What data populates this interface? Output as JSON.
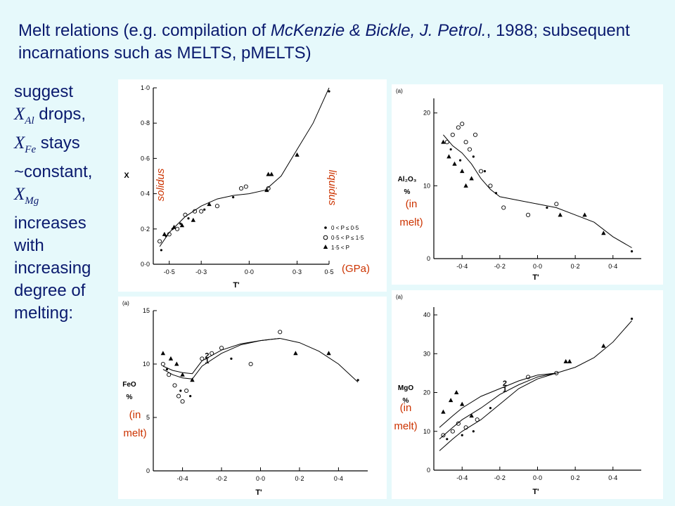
{
  "slide": {
    "title_a": "Melt relations (e.g. compilation of ",
    "title_ital": "McKenzie & Bickle, J. Petrol.",
    "title_b": ", 1988; subsequent incarnations such as MELTS, pMELTS)",
    "side": {
      "l1": "suggest",
      "al_sym": "X",
      "al_sub": "Al",
      "al_txt": " drops,",
      "fe_sym": "X",
      "fe_sub": "Fe",
      "fe_txt": " stays",
      "l4": "~constant,",
      "mg_sym": "X",
      "mg_sub": "Mg",
      "l6": "increases",
      "l7": "with",
      "l8": "increasing",
      "l9": "degree of",
      "l10": "melting:"
    }
  },
  "colors": {
    "text": "#0a1a6e",
    "annotation": "#cc3300",
    "background": "#e6f9fb"
  },
  "chart_data": [
    {
      "type": "scatter",
      "xlabel": "T'",
      "ylabel": "X",
      "xlim": [
        -0.6,
        0.5
      ],
      "ylim": [
        0,
        1.0
      ],
      "xticks": [
        "-0·5",
        "-0·3",
        "0·0",
        "0·3",
        "0·5"
      ],
      "xtick_values": [
        -0.5,
        -0.3,
        0.0,
        0.3,
        0.5
      ],
      "yticks": [
        "0·0",
        "0·2",
        "0·4",
        "0·6",
        "0·8",
        "1·0"
      ],
      "ytick_values": [
        0.0,
        0.2,
        0.4,
        0.6,
        0.8,
        1.0
      ],
      "annotations": {
        "solidus": "solidus",
        "liquidus": "liquidus",
        "units": "(GPa)"
      },
      "legend": [
        {
          "symbol": "dot",
          "label": "0 < P ≤ 0·5"
        },
        {
          "symbol": "circle",
          "label": "0·5 < P ≤ 1·5"
        },
        {
          "symbol": "triangle",
          "label": "1·5 < P"
        }
      ],
      "curve": [
        [
          -0.56,
          0.1
        ],
        [
          -0.5,
          0.18
        ],
        [
          -0.4,
          0.27
        ],
        [
          -0.3,
          0.33
        ],
        [
          -0.2,
          0.37
        ],
        [
          -0.1,
          0.39
        ],
        [
          0.0,
          0.4
        ],
        [
          0.1,
          0.42
        ],
        [
          0.2,
          0.5
        ],
        [
          0.3,
          0.65
        ],
        [
          0.4,
          0.8
        ],
        [
          0.5,
          1.0
        ]
      ],
      "series": [
        {
          "name": "0 < P ≤ 0·5",
          "marker": "dot",
          "points": [
            [
              -0.55,
              0.08
            ],
            [
              -0.52,
              0.16
            ],
            [
              -0.48,
              0.2
            ],
            [
              -0.43,
              0.23
            ],
            [
              -0.38,
              0.26
            ],
            [
              -0.28,
              0.31
            ],
            [
              -0.1,
              0.38
            ],
            [
              0.5,
              0.98
            ]
          ]
        },
        {
          "name": "0·5 < P ≤ 1·5",
          "marker": "circle",
          "points": [
            [
              -0.56,
              0.13
            ],
            [
              -0.5,
              0.17
            ],
            [
              -0.45,
              0.2
            ],
            [
              -0.4,
              0.28
            ],
            [
              -0.34,
              0.3
            ],
            [
              -0.3,
              0.3
            ],
            [
              -0.2,
              0.33
            ],
            [
              -0.05,
              0.43
            ],
            [
              -0.02,
              0.44
            ],
            [
              0.12,
              0.43
            ]
          ]
        },
        {
          "name": "1·5 < P",
          "marker": "triangle",
          "points": [
            [
              -0.53,
              0.17
            ],
            [
              -0.47,
              0.21
            ],
            [
              -0.42,
              0.22
            ],
            [
              -0.35,
              0.25
            ],
            [
              -0.25,
              0.34
            ],
            [
              0.12,
              0.51
            ],
            [
              0.14,
              0.51
            ],
            [
              0.3,
              0.62
            ],
            [
              0.11,
              0.42
            ]
          ]
        }
      ]
    },
    {
      "type": "scatter",
      "panel_label": "(a)",
      "xlabel": "T'",
      "ylabel": "Al₂O₃ %",
      "xlim": [
        -0.55,
        0.55
      ],
      "ylim": [
        0,
        22
      ],
      "xticks": [
        "-0·4",
        "-0·2",
        "0·0",
        "0·2",
        "0·4"
      ],
      "xtick_values": [
        -0.4,
        -0.2,
        0.0,
        0.2,
        0.4
      ],
      "yticks": [
        "0",
        "10",
        "20"
      ],
      "ytick_values": [
        0,
        10,
        20
      ],
      "annotations": {
        "units": "(in melt)"
      },
      "curve": [
        [
          -0.5,
          17
        ],
        [
          -0.45,
          15.5
        ],
        [
          -0.4,
          14.5
        ],
        [
          -0.35,
          13
        ],
        [
          -0.3,
          11
        ],
        [
          -0.25,
          9.5
        ],
        [
          -0.2,
          8.5
        ],
        [
          -0.1,
          8
        ],
        [
          0,
          7.5
        ],
        [
          0.1,
          7
        ],
        [
          0.2,
          6
        ],
        [
          0.3,
          5
        ],
        [
          0.4,
          3
        ],
        [
          0.5,
          1.5
        ]
      ],
      "series": [
        {
          "name": "",
          "marker": "circle",
          "points": [
            [
              -0.48,
              16
            ],
            [
              -0.45,
              17
            ],
            [
              -0.42,
              18
            ],
            [
              -0.4,
              18.5
            ],
            [
              -0.38,
              16
            ],
            [
              -0.36,
              15
            ],
            [
              -0.33,
              17
            ],
            [
              -0.3,
              12
            ],
            [
              -0.25,
              10
            ],
            [
              -0.18,
              7
            ],
            [
              -0.05,
              6
            ],
            [
              0.1,
              7.5
            ]
          ]
        },
        {
          "name": "",
          "marker": "triangle",
          "points": [
            [
              -0.5,
              16
            ],
            [
              -0.47,
              14
            ],
            [
              -0.44,
              13
            ],
            [
              -0.4,
              12
            ],
            [
              -0.38,
              10
            ],
            [
              -0.35,
              11
            ],
            [
              0.12,
              6
            ],
            [
              0.25,
              6
            ],
            [
              0.35,
              3.5
            ]
          ]
        },
        {
          "name": "",
          "marker": "dot",
          "points": [
            [
              -0.46,
              15
            ],
            [
              -0.41,
              13.5
            ],
            [
              -0.34,
              14
            ],
            [
              -0.28,
              12
            ],
            [
              -0.22,
              9
            ],
            [
              0.05,
              7
            ],
            [
              0.5,
              1
            ]
          ]
        }
      ]
    },
    {
      "type": "scatter",
      "panel_label": "(a)",
      "xlabel": "T'",
      "ylabel": "FeO %",
      "xlim": [
        -0.55,
        0.55
      ],
      "ylim": [
        0,
        15
      ],
      "xticks": [
        "-0·4",
        "-0·2",
        "0·0",
        "0·2",
        "0·4"
      ],
      "xtick_values": [
        -0.4,
        -0.2,
        0.0,
        0.2,
        0.4
      ],
      "yticks": [
        "0",
        "5",
        "10",
        "15"
      ],
      "ytick_values": [
        0,
        5,
        10,
        15
      ],
      "annotations": {
        "units": "(in melt)",
        "curve1": "1",
        "curve2": "2"
      },
      "curves": [
        {
          "label": "1",
          "points": [
            [
              -0.5,
              9.5
            ],
            [
              -0.45,
              9.0
            ],
            [
              -0.4,
              8.7
            ],
            [
              -0.35,
              8.6
            ],
            [
              -0.3,
              9.8
            ],
            [
              -0.2,
              11
            ],
            [
              -0.1,
              11.8
            ],
            [
              0.0,
              12.2
            ],
            [
              0.1,
              12.4
            ]
          ]
        },
        {
          "label": "2",
          "points": [
            [
              -0.5,
              9.8
            ],
            [
              -0.45,
              9.4
            ],
            [
              -0.4,
              9.2
            ],
            [
              -0.35,
              9.1
            ],
            [
              -0.3,
              10.3
            ],
            [
              -0.2,
              11.3
            ],
            [
              -0.1,
              11.9
            ],
            [
              0.0,
              12.2
            ],
            [
              0.1,
              12.4
            ]
          ]
        },
        {
          "label": "",
          "points": [
            [
              0.1,
              12.4
            ],
            [
              0.2,
              12
            ],
            [
              0.3,
              11.2
            ],
            [
              0.4,
              10
            ],
            [
              0.5,
              8.3
            ]
          ]
        }
      ],
      "series": [
        {
          "name": "",
          "marker": "circle",
          "points": [
            [
              -0.5,
              10
            ],
            [
              -0.47,
              9
            ],
            [
              -0.44,
              8
            ],
            [
              -0.42,
              7
            ],
            [
              -0.4,
              6.5
            ],
            [
              -0.38,
              7.5
            ],
            [
              -0.3,
              10.5
            ],
            [
              -0.25,
              11
            ],
            [
              -0.2,
              11.5
            ],
            [
              -0.05,
              10
            ],
            [
              0.1,
              13
            ]
          ]
        },
        {
          "name": "",
          "marker": "triangle",
          "points": [
            [
              -0.5,
              11
            ],
            [
              -0.46,
              10.5
            ],
            [
              -0.43,
              10
            ],
            [
              -0.4,
              9
            ],
            [
              -0.35,
              8.5
            ],
            [
              0.18,
              11
            ],
            [
              0.35,
              11
            ]
          ]
        },
        {
          "name": "",
          "marker": "dot",
          "points": [
            [
              -0.48,
              9.5
            ],
            [
              -0.41,
              7.5
            ],
            [
              -0.36,
              7
            ],
            [
              -0.15,
              10.5
            ],
            [
              0.5,
              8.5
            ]
          ]
        }
      ]
    },
    {
      "type": "scatter",
      "panel_label": "(a)",
      "xlabel": "T'",
      "ylabel": "MgO %",
      "xlim": [
        -0.55,
        0.55
      ],
      "ylim": [
        0,
        42
      ],
      "xticks": [
        "-0·4",
        "-0·2",
        "0·0",
        "0·2",
        "0·4"
      ],
      "xtick_values": [
        -0.4,
        -0.2,
        0.0,
        0.2,
        0.4
      ],
      "yticks": [
        "0",
        "10",
        "20",
        "30",
        "40"
      ],
      "ytick_values": [
        0,
        10,
        20,
        30,
        40
      ],
      "annotations": {
        "units": "(in melt)",
        "curve1": "1",
        "curve2": "2"
      },
      "curves": [
        {
          "label": "2",
          "points": [
            [
              -0.52,
              11
            ],
            [
              -0.45,
              14
            ],
            [
              -0.4,
              16
            ],
            [
              -0.3,
              19
            ],
            [
              -0.2,
              21
            ],
            [
              -0.1,
              23
            ],
            [
              0.0,
              24.5
            ],
            [
              0.1,
              25
            ]
          ]
        },
        {
          "label": "1",
          "points": [
            [
              -0.52,
              8
            ],
            [
              -0.45,
              11
            ],
            [
              -0.4,
              13
            ],
            [
              -0.3,
              16
            ],
            [
              -0.2,
              19.5
            ],
            [
              -0.1,
              22
            ],
            [
              0.0,
              24
            ],
            [
              0.1,
              25
            ]
          ]
        },
        {
          "label": "",
          "points": [
            [
              -0.52,
              5
            ],
            [
              -0.45,
              8
            ],
            [
              -0.4,
              10
            ],
            [
              -0.3,
              13
            ],
            [
              -0.2,
              17
            ],
            [
              -0.1,
              21
            ],
            [
              0.0,
              23.5
            ],
            [
              0.1,
              25
            ]
          ]
        },
        {
          "label": "",
          "points": [
            [
              0.1,
              25
            ],
            [
              0.2,
              26.5
            ],
            [
              0.3,
              29
            ],
            [
              0.4,
              33
            ],
            [
              0.5,
              38.5
            ]
          ]
        }
      ],
      "series": [
        {
          "name": "",
          "marker": "circle",
          "points": [
            [
              -0.5,
              9
            ],
            [
              -0.45,
              10
            ],
            [
              -0.42,
              12
            ],
            [
              -0.38,
              11
            ],
            [
              -0.32,
              13
            ],
            [
              -0.05,
              24
            ],
            [
              0.1,
              25
            ]
          ]
        },
        {
          "name": "",
          "marker": "triangle",
          "points": [
            [
              -0.5,
              15
            ],
            [
              -0.46,
              18
            ],
            [
              -0.43,
              20
            ],
            [
              -0.4,
              17
            ],
            [
              -0.35,
              14
            ],
            [
              0.15,
              28
            ],
            [
              0.17,
              28
            ],
            [
              0.35,
              32
            ]
          ]
        },
        {
          "name": "",
          "marker": "dot",
          "points": [
            [
              -0.48,
              8
            ],
            [
              -0.4,
              9
            ],
            [
              -0.34,
              10
            ],
            [
              -0.25,
              16
            ],
            [
              0.5,
              39
            ]
          ]
        }
      ]
    }
  ]
}
